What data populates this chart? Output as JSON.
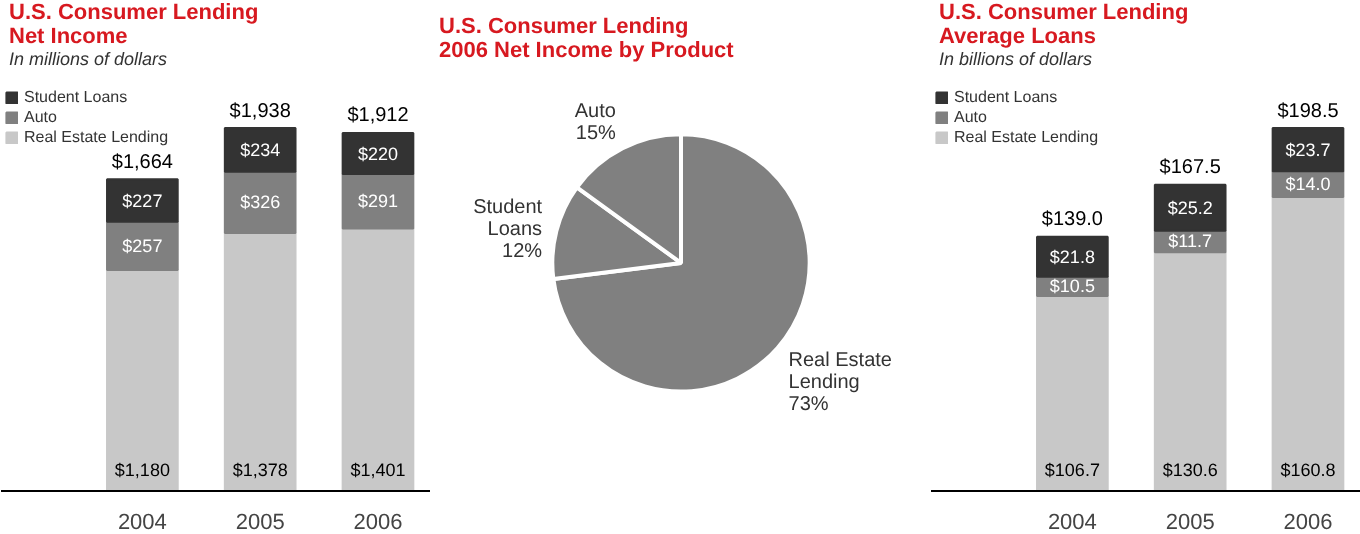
{
  "chart_data": [
    {
      "type": "bar",
      "title": "U.S. Consumer Lending\nNet Income",
      "subtitle": "In millions of dollars",
      "categories": [
        "2004",
        "2005",
        "2006"
      ],
      "stacked": true,
      "legend": "top left",
      "series": [
        {
          "name": "Real Estate Lending",
          "color": "#c8c8c8",
          "values": [
            1180,
            1378,
            1401
          ],
          "value_labels": [
            "$1,180",
            "$1,378",
            "$1,401"
          ]
        },
        {
          "name": "Auto",
          "color": "#808080",
          "values": [
            257,
            326,
            291
          ],
          "value_labels": [
            "$257",
            "$326",
            "$291"
          ]
        },
        {
          "name": "Student Loans",
          "color": "#333333",
          "values": [
            227,
            234,
            220
          ],
          "value_labels": [
            "$227",
            "$234",
            "$220"
          ]
        }
      ],
      "totals": [
        "$1,664",
        "$1,938",
        "$1,912"
      ]
    },
    {
      "type": "pie",
      "title": "U.S. Consumer Lending\n2006 Net Income by Product",
      "categories": [
        "Real Estate Lending",
        "Student Loans",
        "Auto"
      ],
      "values": [
        73,
        12,
        15
      ],
      "colors": [
        "#808080",
        "#808080",
        "#808080"
      ],
      "value_labels": [
        "73%",
        "12%",
        "15%"
      ]
    },
    {
      "type": "bar",
      "title": "U.S. Consumer Lending\nAverage Loans",
      "subtitle": "In billions of dollars",
      "categories": [
        "2004",
        "2005",
        "2006"
      ],
      "stacked": true,
      "legend": "top left",
      "series": [
        {
          "name": "Real Estate Lending",
          "color": "#c8c8c8",
          "values": [
            106.7,
            130.6,
            160.8
          ],
          "value_labels": [
            "$106.7",
            "$130.6",
            "$160.8"
          ]
        },
        {
          "name": "Auto",
          "color": "#808080",
          "values": [
            10.5,
            11.7,
            14.0
          ],
          "value_labels": [
            "$10.5",
            "$11.7",
            "$14.0"
          ]
        },
        {
          "name": "Student Loans",
          "color": "#333333",
          "values": [
            21.8,
            25.2,
            23.7
          ],
          "value_labels": [
            "$21.8",
            "$25.2",
            "$23.7"
          ]
        }
      ],
      "totals": [
        "$139.0",
        "$167.5",
        "$198.5"
      ]
    }
  ]
}
